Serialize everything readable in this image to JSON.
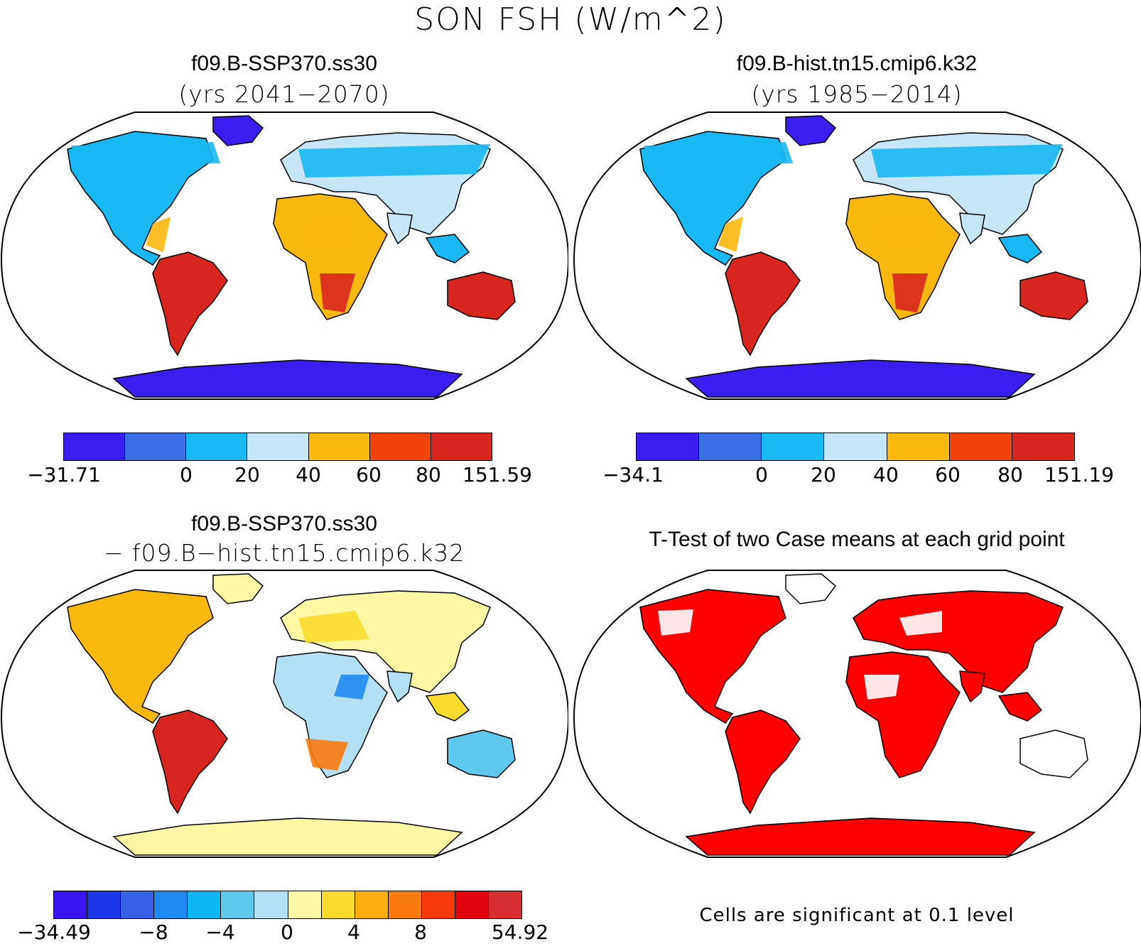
{
  "title": "SON FSH (W/m^2)",
  "colors": {
    "base_scale": [
      "#3a1ef0",
      "#3a6fe6",
      "#18b8f2",
      "#c6e6f8",
      "#f9b80c",
      "#f4420c",
      "#d8261f"
    ],
    "diff_scale": [
      "#3b15f0",
      "#1c36ea",
      "#3360e6",
      "#1f8af1",
      "#0db6ef",
      "#5ec8ef",
      "#b4e0f5",
      "#fff7a3",
      "#fbdb2c",
      "#fbae0d",
      "#f97b0d",
      "#f73a0b",
      "#e2050b",
      "#d52d30"
    ],
    "significant": "#ff0000",
    "land_warm": "#f9b80c",
    "land_hot": "#d8261f",
    "land_cool": "#c6e6f8",
    "land_cold": "#18b8f2",
    "ice": "#3a1ef0"
  },
  "panels": {
    "top_left": {
      "title": "f09.B-SSP370.ss30",
      "subtitle": "(yrs 2041−2070)",
      "colorbar_labels": [
        "−31.71",
        "0",
        "20",
        "40",
        "60",
        "80",
        "151.59"
      ]
    },
    "top_right": {
      "title": "f09.B-hist.tn15.cmip6.k32",
      "subtitle": "(yrs 1985−2014)",
      "colorbar_labels": [
        "−34.1",
        "0",
        "20",
        "40",
        "60",
        "80",
        "151.19"
      ]
    },
    "bottom_left": {
      "title": "f09.B-SSP370.ss30",
      "subtitle": "− f09.B−hist.tn15.cmip6.k32",
      "colorbar_labels": [
        "−34.49",
        "−8",
        "−4",
        "0",
        "4",
        "8",
        "54.92"
      ]
    },
    "bottom_right": {
      "title": "T-Test of two Case means at each grid point",
      "footnote": "Cells are significant at 0.1 level"
    }
  }
}
